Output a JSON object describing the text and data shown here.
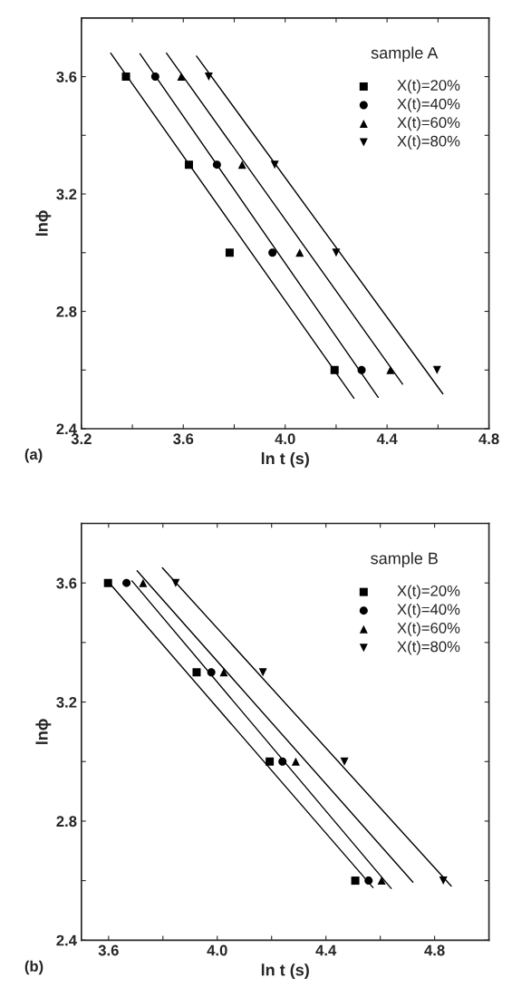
{
  "chart_data": [
    {
      "type": "scatter",
      "xlabel": "ln t (s)",
      "ylabel": "lnϕ",
      "legend_title": "sample A",
      "legend": "top right",
      "grid": false,
      "xlim": [
        3.2,
        4.8
      ],
      "xticks": [
        3.2,
        {
          "value": 3.4,
          "label": null
        },
        3.6,
        {
          "value": 3.8,
          "label": null
        },
        {
          "value": 4.0,
          "label": "4.0"
        },
        {
          "value": 4.2,
          "label": null
        },
        4.4,
        {
          "value": 4.6,
          "label": null
        },
        4.8
      ],
      "ylim": [
        2.4,
        3.8
      ],
      "yticks": [
        2.4,
        {
          "value": 2.6,
          "label": null
        },
        2.8,
        {
          "value": 3.0,
          "label": null
        },
        3.2,
        {
          "value": 3.4,
          "label": null
        },
        3.6
      ],
      "annotations": [
        "(a)"
      ],
      "series": [
        {
          "name": "X(t)=20%",
          "color": "#000000",
          "marker": "square",
          "x": [
            3.375,
            3.622,
            3.782,
            4.194
          ],
          "values": [
            3.6,
            3.3,
            3.0,
            2.6
          ]
        },
        {
          "name": "X(t)=40%",
          "color": "#000000",
          "marker": "circle",
          "x": [
            3.49,
            3.732,
            3.95,
            4.3
          ],
          "values": [
            3.6,
            3.3,
            3.0,
            2.6
          ]
        },
        {
          "name": "X(t)=60%",
          "color": "#000000",
          "marker": "triangle",
          "x": [
            3.592,
            3.831,
            4.057,
            4.413
          ],
          "values": [
            3.6,
            3.3,
            3.0,
            2.6
          ]
        },
        {
          "name": "X(t)=80%",
          "color": "#000000",
          "marker": "triangle_down",
          "x": [
            3.7,
            3.959,
            4.2,
            4.596
          ],
          "values": [
            3.6,
            3.3,
            3.0,
            2.6
          ]
        },
        {
          "type": "line",
          "color": "#000000",
          "marker": "none",
          "line_style": "solid",
          "x": [
            3.315,
            4.27
          ],
          "values": [
            3.68,
            2.504
          ]
        },
        {
          "type": "line",
          "color": "#000000",
          "marker": "none",
          "line_style": "solid",
          "x": [
            3.43,
            4.365
          ],
          "values": [
            3.678,
            2.507
          ]
        },
        {
          "type": "line",
          "color": "#000000",
          "marker": "none",
          "line_style": "solid",
          "x": [
            3.534,
            4.461
          ],
          "values": [
            3.68,
            2.552
          ]
        },
        {
          "type": "line",
          "color": "#000000",
          "marker": "none",
          "line_style": "solid",
          "x": [
            3.652,
            4.619
          ],
          "values": [
            3.67,
            2.519
          ]
        }
      ]
    },
    {
      "type": "scatter",
      "xlabel": "ln t (s)",
      "ylabel": "lnϕ",
      "legend_title": "sample B",
      "legend": "top right",
      "grid": false,
      "xlim": [
        3.5,
        5.0
      ],
      "xticks": [
        3.6,
        {
          "value": 3.8,
          "label": null
        },
        {
          "value": 4.0,
          "label": "4.0"
        },
        {
          "value": 4.2,
          "label": null
        },
        4.4,
        {
          "value": 4.6,
          "label": null
        },
        4.8
      ],
      "ylim": [
        2.4,
        3.8
      ],
      "yticks": [
        2.4,
        {
          "value": 2.6,
          "label": null
        },
        2.8,
        {
          "value": 3.0,
          "label": null
        },
        3.2,
        {
          "value": 3.4,
          "label": null
        },
        3.6
      ],
      "annotations": [
        "(b)"
      ],
      "series": [
        {
          "name": "X(t)=20%",
          "color": "#000000",
          "marker": "square",
          "x": [
            3.598,
            3.924,
            4.193,
            4.508
          ],
          "values": [
            3.6,
            3.3,
            3.0,
            2.6
          ]
        },
        {
          "name": "X(t)=40%",
          "color": "#000000",
          "marker": "circle",
          "x": [
            3.666,
            3.978,
            4.24,
            4.557
          ],
          "values": [
            3.6,
            3.3,
            3.0,
            2.6
          ]
        },
        {
          "name": "X(t)=60%",
          "color": "#000000",
          "marker": "triangle",
          "x": [
            3.727,
            4.024,
            4.289,
            4.605
          ],
          "values": [
            3.6,
            3.3,
            3.0,
            2.6
          ]
        },
        {
          "name": "X(t)=80%",
          "color": "#000000",
          "marker": "triangle_down",
          "x": [
            3.847,
            4.168,
            4.468,
            4.832
          ],
          "values": [
            3.6,
            3.3,
            3.0,
            2.6
          ]
        },
        {
          "type": "line",
          "color": "#000000",
          "marker": "none",
          "line_style": "solid",
          "x": [
            3.61,
            4.573
          ],
          "values": [
            3.592,
            2.577
          ]
        },
        {
          "type": "line",
          "color": "#000000",
          "marker": "none",
          "line_style": "solid",
          "x": [
            3.686,
            4.64
          ],
          "values": [
            3.607,
            2.574
          ]
        },
        {
          "type": "line",
          "color": "#000000",
          "marker": "none",
          "line_style": "solid",
          "x": [
            3.705,
            4.72
          ],
          "values": [
            3.641,
            2.595
          ]
        },
        {
          "type": "line",
          "color": "#000000",
          "marker": "none",
          "line_style": "solid",
          "x": [
            3.798,
            4.861
          ],
          "values": [
            3.651,
            2.582
          ]
        }
      ]
    }
  ]
}
